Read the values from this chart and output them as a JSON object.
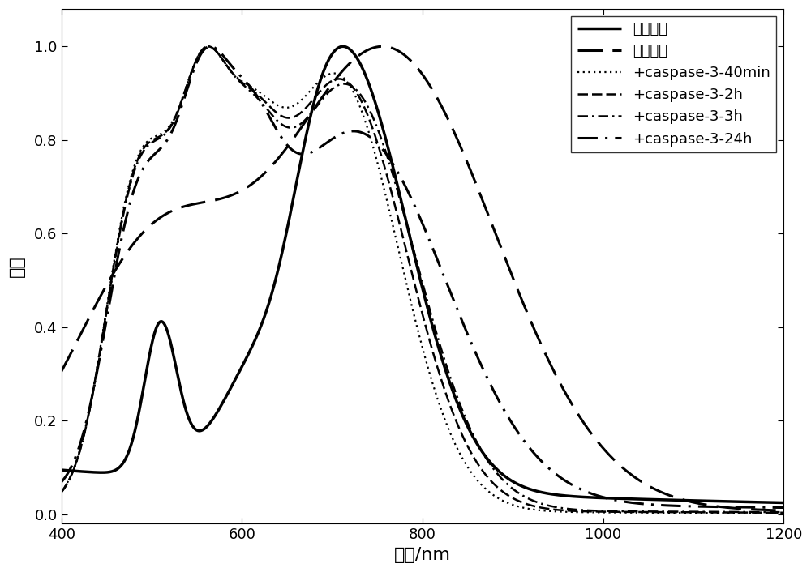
{
  "title": "",
  "xlabel": "波长/nm",
  "ylabel": "强度",
  "xlim": [
    400,
    1200
  ],
  "ylim": [
    -0.02,
    1.08
  ],
  "xticks": [
    400,
    600,
    800,
    1000,
    1200
  ],
  "yticks": [
    0.0,
    0.2,
    0.4,
    0.6,
    0.8,
    1.0
  ],
  "background_color": "#ffffff",
  "legend_labels": [
    "金纳米棒",
    "探针材料",
    "+caspase-3-40min",
    "+caspase-3-2h",
    "+caspase-3-3h",
    "+caspase-3-24h"
  ],
  "font_size": 16,
  "legend_fontsize": 13,
  "tick_fontsize": 13
}
